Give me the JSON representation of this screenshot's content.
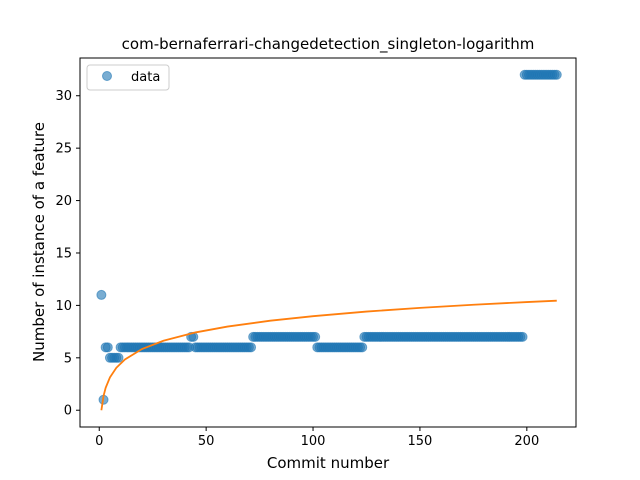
{
  "chart_data": {
    "type": "scatter",
    "title": "com-bernaferrari-changedetection_singleton-logarithm",
    "xlabel": "Commit number",
    "ylabel": "Number of instance of a feature",
    "xlim": [
      -9,
      223
    ],
    "ylim": [
      -1.6,
      33.6
    ],
    "xticks": [
      0,
      50,
      100,
      150,
      200
    ],
    "yticks": [
      0,
      5,
      10,
      15,
      20,
      25,
      30
    ],
    "grid": false,
    "legend_position": "top-left",
    "series": [
      {
        "name": "data",
        "kind": "scatter",
        "color": "#1f77b4",
        "runs": [
          {
            "x_start": 1,
            "x_end": 1,
            "y": 11
          },
          {
            "x_start": 2,
            "x_end": 2,
            "y": 1
          },
          {
            "x_start": 3,
            "x_end": 4,
            "y": 6
          },
          {
            "x_start": 5,
            "x_end": 9,
            "y": 5
          },
          {
            "x_start": 10,
            "x_end": 42,
            "y": 6
          },
          {
            "x_start": 43,
            "x_end": 44,
            "y": 7
          },
          {
            "x_start": 45,
            "x_end": 71,
            "y": 6
          },
          {
            "x_start": 72,
            "x_end": 101,
            "y": 7
          },
          {
            "x_start": 102,
            "x_end": 123,
            "y": 6
          },
          {
            "x_start": 124,
            "x_end": 198,
            "y": 7
          },
          {
            "x_start": 199,
            "x_end": 214,
            "y": 32
          }
        ]
      },
      {
        "kind": "line",
        "color": "#ff7f0e",
        "x": [
          1,
          2,
          3,
          5,
          8,
          12,
          20,
          30,
          45,
          60,
          80,
          100,
          125,
          150,
          175,
          200,
          214
        ],
        "y": [
          0,
          1.35,
          2.14,
          3.13,
          4.05,
          4.84,
          5.84,
          6.63,
          7.42,
          7.98,
          8.54,
          8.97,
          9.41,
          9.76,
          10.06,
          10.32,
          10.45
        ]
      }
    ]
  }
}
